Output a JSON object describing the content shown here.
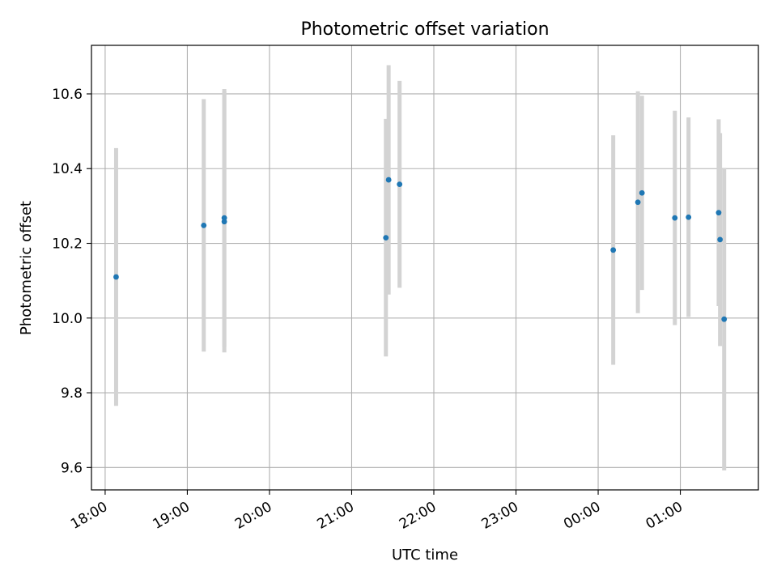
{
  "chart_data": {
    "type": "scatter",
    "title": "Photometric offset variation",
    "xlabel": "UTC time",
    "ylabel": "Photometric offset",
    "x_axis": {
      "kind": "time",
      "xlim": [
        "17:50",
        "01:57"
      ],
      "ticks": [
        "18:00",
        "19:00",
        "20:00",
        "21:00",
        "22:00",
        "23:00",
        "00:00",
        "01:00"
      ],
      "tick_rotation": "30"
    },
    "y_axis": {
      "ylim": [
        9.54,
        10.73
      ],
      "ticks": [
        "9.6",
        "9.8",
        "10.0",
        "10.2",
        "10.4",
        "10.6"
      ]
    },
    "grid": true,
    "colors": {
      "point": "#1f77b4",
      "errorbar": "#d3d3d3",
      "grid": "#b0b0b0"
    },
    "points": [
      {
        "time": "18:08",
        "value": 10.11,
        "err": 0.345
      },
      {
        "time": "19:12",
        "value": 10.248,
        "err": 0.338
      },
      {
        "time": "19:27",
        "value": 10.258,
        "err": 0.35
      },
      {
        "time": "19:27",
        "value": 10.268,
        "err": 0.345
      },
      {
        "time": "21:25",
        "value": 10.215,
        "err": 0.318
      },
      {
        "time": "21:27",
        "value": 10.37,
        "err": 0.307
      },
      {
        "time": "21:35",
        "value": 10.358,
        "err": 0.277
      },
      {
        "time": "00:11",
        "value": 10.182,
        "err": 0.307
      },
      {
        "time": "00:29",
        "value": 10.31,
        "err": 0.297
      },
      {
        "time": "00:32",
        "value": 10.335,
        "err": 0.26
      },
      {
        "time": "00:56",
        "value": 10.268,
        "err": 0.287
      },
      {
        "time": "01:06",
        "value": 10.27,
        "err": 0.267
      },
      {
        "time": "01:28",
        "value": 10.282,
        "err": 0.25
      },
      {
        "time": "01:29",
        "value": 10.21,
        "err": 0.285
      },
      {
        "time": "01:32",
        "value": 9.997,
        "err": 0.405
      }
    ]
  }
}
